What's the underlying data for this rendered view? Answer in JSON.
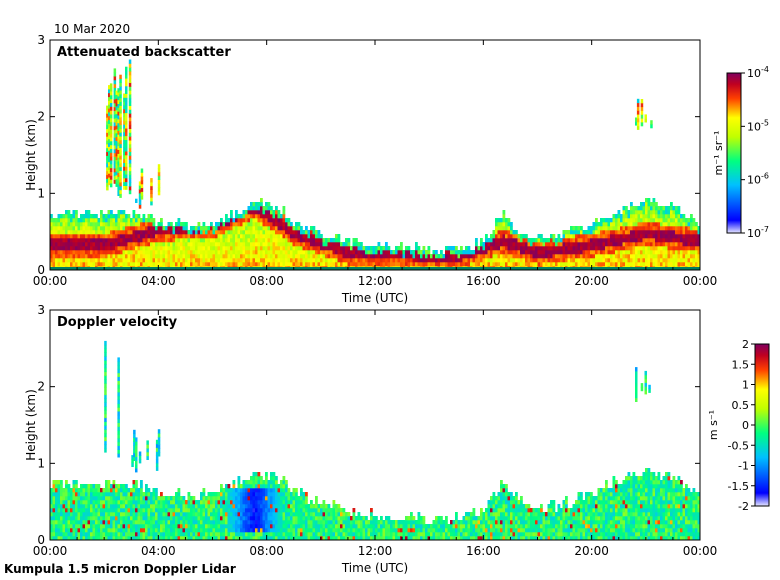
{
  "header": {
    "date": "10 Mar 2020"
  },
  "footer": {
    "instrument": "Kumpula 1.5 micron Doppler Lidar"
  },
  "colors": {
    "jet": [
      "#00008f",
      "#0000ff",
      "#0080ff",
      "#00ffff",
      "#80ff80",
      "#ffff00",
      "#ff8000",
      "#ff0000",
      "#800000"
    ],
    "background": "#ffffff"
  },
  "chart_data": [
    {
      "type": "heatmap",
      "title": "Attenuated backscatter",
      "xlabel": "Time (UTC)",
      "ylabel": "Height (km)",
      "x_ticks": [
        "00:00",
        "04:00",
        "08:00",
        "12:00",
        "16:00",
        "20:00",
        "00:00"
      ],
      "x_range_hours": [
        0,
        24
      ],
      "y_ticks": [
        "0",
        "1",
        "2",
        "3"
      ],
      "ylim": [
        0,
        3
      ],
      "colorbar": {
        "label": "m⁻¹ sr⁻¹",
        "scale": "log",
        "range": [
          1e-07,
          0.0001
        ],
        "ticks": [
          {
            "base": "10",
            "exp": "-4"
          },
          {
            "base": "10",
            "exp": "-5"
          },
          {
            "base": "10",
            "exp": "-6"
          },
          {
            "base": "10",
            "exp": "-7"
          }
        ]
      },
      "boundary_layer_top_km": [
        [
          0,
          0.7
        ],
        [
          1,
          0.7
        ],
        [
          2,
          0.72
        ],
        [
          3,
          0.7
        ],
        [
          4,
          0.62
        ],
        [
          5,
          0.55
        ],
        [
          6,
          0.58
        ],
        [
          7,
          0.75
        ],
        [
          7.8,
          0.85
        ],
        [
          8.5,
          0.78
        ],
        [
          9,
          0.6
        ],
        [
          10,
          0.45
        ],
        [
          11,
          0.35
        ],
        [
          12,
          0.3
        ],
        [
          13,
          0.28
        ],
        [
          14,
          0.25
        ],
        [
          15,
          0.25
        ],
        [
          16,
          0.35
        ],
        [
          16.7,
          0.72
        ],
        [
          17.2,
          0.5
        ],
        [
          18,
          0.4
        ],
        [
          19,
          0.45
        ],
        [
          20,
          0.6
        ],
        [
          21,
          0.75
        ],
        [
          22,
          0.9
        ],
        [
          23,
          0.8
        ],
        [
          24,
          0.55
        ]
      ],
      "aerosol_layer_max_km": [
        [
          0,
          0.3
        ],
        [
          2,
          0.3
        ],
        [
          4,
          0.5
        ],
        [
          6,
          0.55
        ],
        [
          7.5,
          0.8
        ],
        [
          9,
          0.45
        ],
        [
          11,
          0.2
        ],
        [
          13,
          0.18
        ],
        [
          15,
          0.15
        ],
        [
          16.7,
          0.35
        ],
        [
          18,
          0.2
        ],
        [
          20,
          0.3
        ],
        [
          22,
          0.45
        ],
        [
          24,
          0.35
        ]
      ],
      "clouds": [
        {
          "t_start": 2.0,
          "t_end": 3.0,
          "h_low_km": 0.9,
          "h_high_km": 2.7
        },
        {
          "t_start": 3.0,
          "t_end": 4.0,
          "h_low_km": 0.8,
          "h_high_km": 1.4
        },
        {
          "t_start": 21.6,
          "t_end": 22.2,
          "h_low_km": 1.8,
          "h_high_km": 2.35
        }
      ]
    },
    {
      "type": "heatmap",
      "title": "Doppler velocity",
      "xlabel": "Time (UTC)",
      "ylabel": "Height (km)",
      "x_ticks": [
        "00:00",
        "04:00",
        "08:00",
        "12:00",
        "16:00",
        "20:00",
        "00:00"
      ],
      "x_range_hours": [
        0,
        24
      ],
      "y_ticks": [
        "0",
        "1",
        "2",
        "3"
      ],
      "ylim": [
        0,
        3
      ],
      "colorbar": {
        "label": "m s⁻¹",
        "scale": "linear",
        "range": [
          -2,
          2
        ],
        "ticks": [
          "2",
          "1.5",
          "1",
          "0.5",
          "0",
          "-0.5",
          "-1",
          "-1.5",
          "-2"
        ]
      },
      "downdraft_core": {
        "t_start": 6.5,
        "t_end": 8.5,
        "h_peak_km": 0.65
      }
    }
  ]
}
